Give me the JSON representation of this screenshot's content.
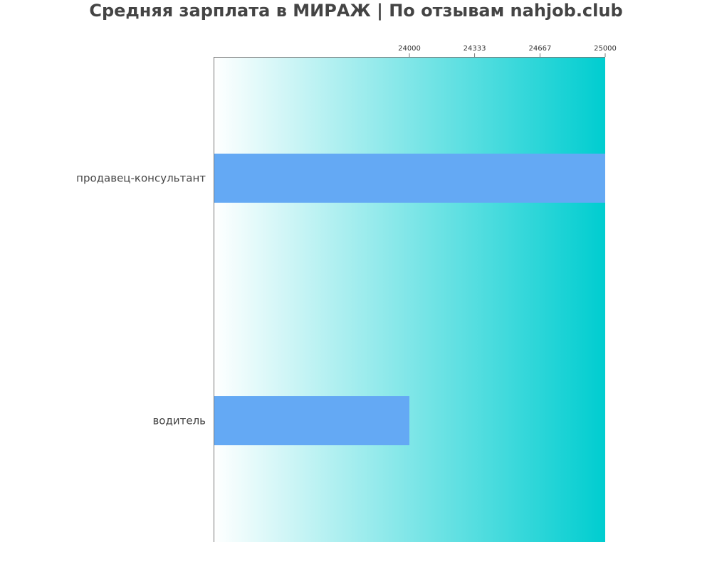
{
  "chart_data": {
    "type": "bar",
    "orientation": "horizontal",
    "title": "Средняя зарплата в МИРАЖ | По отзывам nahjob.club",
    "categories": [
      "продавец-консультант",
      "водитель"
    ],
    "values": [
      25000,
      24000
    ],
    "xlim": [
      23000,
      25000
    ],
    "xticks": [
      "24000",
      "24333",
      "24667",
      "25000"
    ],
    "xtick_values": [
      24000,
      24333,
      24667,
      25000
    ],
    "xaxis_position": "top",
    "bar_color": "#64a9f4",
    "background_gradient": [
      "#ffffff",
      "#00cdd0"
    ],
    "grid": false,
    "legend": "none"
  }
}
